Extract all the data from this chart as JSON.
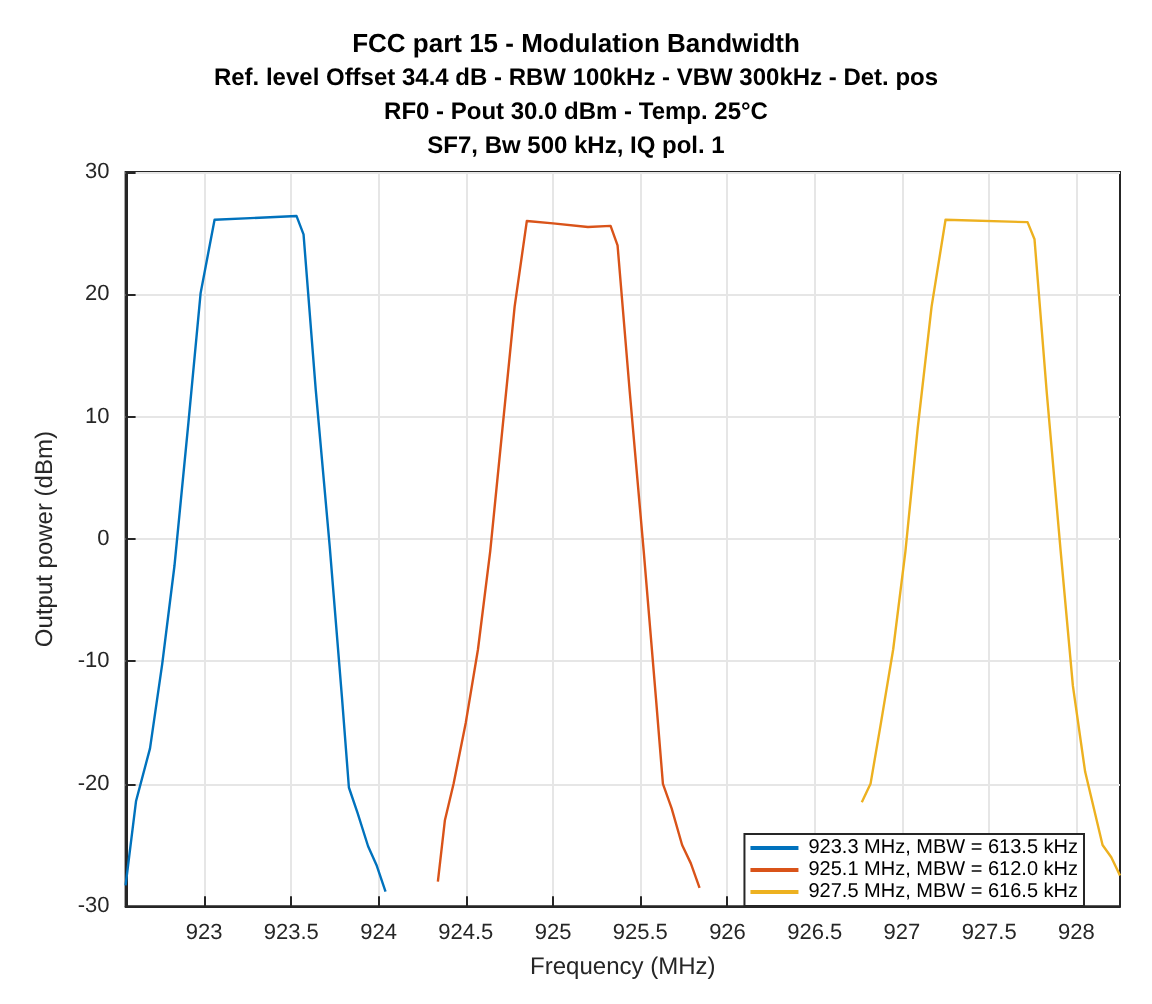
{
  "chart_data": {
    "type": "line",
    "title": "FCC part 15 - Modulation Bandwidth",
    "subtitle": "Ref. level Offset 34.4 dB - RBW 100kHz - VBW 300kHz - Det. pos\nRF0 - Pout 30.0 dBm - Temp. 25°C\nSF7, Bw 500 kHz, IQ pol. 1",
    "xlabel": "Frequency (MHz)",
    "ylabel": "Output power (dBm)",
    "xlim": [
      922.55,
      928.25
    ],
    "xticks": [
      923,
      923.5,
      924,
      924.5,
      925,
      925.5,
      926,
      926.5,
      927,
      927.5,
      928
    ],
    "ylim": [
      -30,
      30
    ],
    "yticks": [
      -30,
      -20,
      -10,
      0,
      10,
      20,
      30
    ],
    "grid": true,
    "legend": "bottom right",
    "marker": "none",
    "line_style": "solid",
    "series": [
      {
        "name": "923.3 MHz, MBW = 613.5 kHz",
        "color": "#0072bd",
        "x": [
          922.55,
          922.61,
          922.69,
          922.76,
          922.83,
          922.91,
          922.98,
          923.06,
          923.53,
          923.57,
          923.64,
          923.72,
          923.79,
          923.83,
          923.88,
          923.94,
          923.99,
          924.04
        ],
        "values": [
          -28.3,
          -21.4,
          -17.1,
          -10.2,
          -2.2,
          9.5,
          20.1,
          26.1,
          26.4,
          24.9,
          12.2,
          -0.6,
          -12.9,
          -20.3,
          -22.4,
          -25.1,
          -26.7,
          -28.8
        ]
      },
      {
        "name": "925.1 MHz, MBW = 612.0 kHz",
        "color": "#d95319",
        "x": [
          924.34,
          924.38,
          924.43,
          924.5,
          924.57,
          924.64,
          924.71,
          924.78,
          924.85,
          925.0,
          925.2,
          925.33,
          925.37,
          925.44,
          925.52,
          925.59,
          925.63,
          925.68,
          925.74,
          925.79,
          925.84
        ],
        "values": [
          -28,
          -23,
          -20,
          -15,
          -9,
          -1,
          9,
          19,
          26.0,
          25.8,
          25.5,
          25.6,
          24,
          12,
          -1,
          -13,
          -20,
          -22,
          -25,
          -26.5,
          -28.5
        ]
      },
      {
        "name": "927.5 MHz, MBW = 616.5 kHz",
        "color": "#edb120",
        "x": [
          926.77,
          926.82,
          926.88,
          926.95,
          927.02,
          927.09,
          927.17,
          927.25,
          927.72,
          927.76,
          927.83,
          927.91,
          927.98,
          928.05,
          928.1,
          928.15,
          928.2,
          928.25
        ],
        "values": [
          -21.5,
          -20,
          -15,
          -9,
          -1,
          9,
          19,
          26.1,
          25.9,
          24.5,
          12,
          -1,
          -12,
          -19,
          -22,
          -25,
          -26,
          -27.5
        ]
      }
    ]
  }
}
